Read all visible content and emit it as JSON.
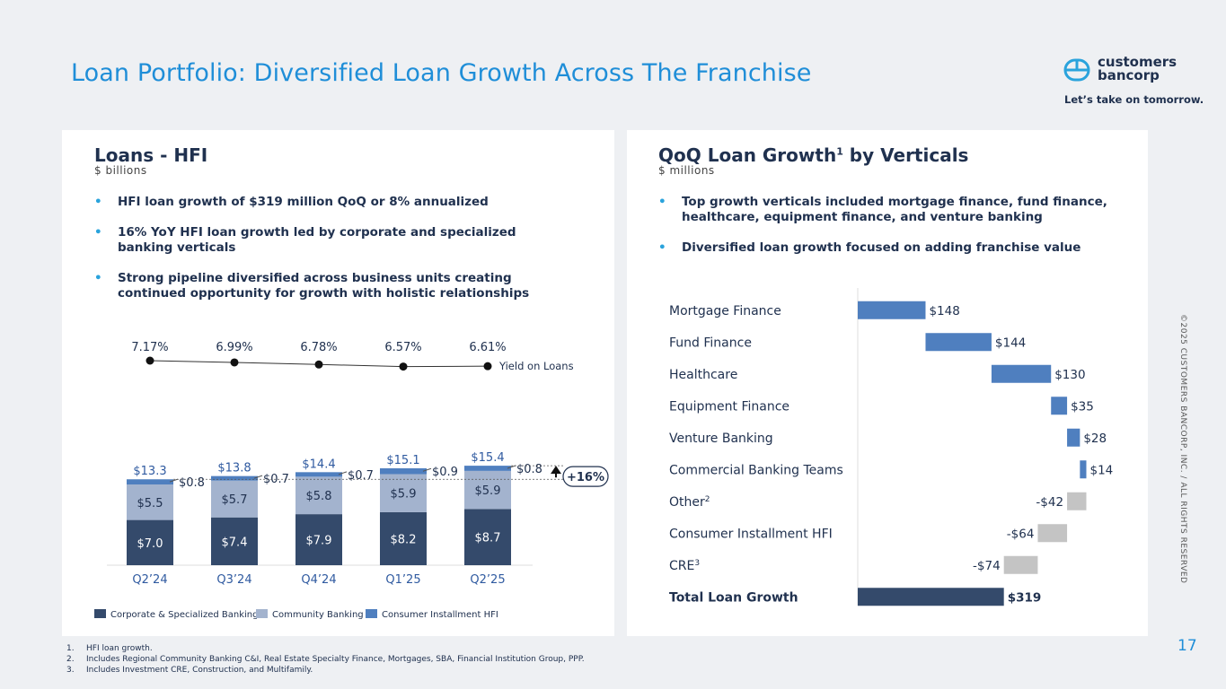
{
  "title": "Loan Portfolio: Diversified Loan Growth Across The Franchise",
  "logo": {
    "line1": "customers",
    "line2": "bancorp",
    "tagline": "Let’s take on tomorrow."
  },
  "left": {
    "title": "Loans - HFI",
    "subtitle": "$ billions",
    "bullets": [
      "HFI loan growth of $319 million QoQ or 8% annualized",
      "16% YoY HFI loan growth led by corporate and specialized banking verticals",
      "Strong pipeline diversified across business units creating continued opportunity for growth with holistic relationships"
    ]
  },
  "right": {
    "title": "QoQ Loan Growth",
    "title_sup": "1",
    "title_suffix": " by Verticals",
    "subtitle": "$ millions",
    "bullets": [
      "Top growth verticals included mortgage finance, fund finance, healthcare, equipment finance, and venture banking",
      "Diversified loan growth focused on adding franchise value"
    ]
  },
  "chart_data": [
    {
      "type": "bar",
      "stacked": true,
      "categories": [
        "Q2’24",
        "Q3’24",
        "Q4’24",
        "Q1’25",
        "Q2’25"
      ],
      "series": [
        {
          "name": "Corporate & Specialized Banking",
          "values": [
            7.0,
            7.4,
            7.9,
            8.2,
            8.7
          ],
          "labels": [
            "$7.0",
            "$7.4",
            "$7.9",
            "$8.2",
            "$8.7"
          ],
          "color": "#344a6b"
        },
        {
          "name": "Community Banking",
          "values": [
            5.5,
            5.7,
            5.8,
            5.9,
            5.9
          ],
          "labels": [
            "$5.5",
            "$5.7",
            "$5.8",
            "$5.9",
            "$5.9"
          ],
          "color": "#a3b3ce"
        },
        {
          "name": "Consumer Installment HFI",
          "values": [
            0.8,
            0.7,
            0.7,
            0.9,
            0.8
          ],
          "labels": [
            "$0.8",
            "$0.7",
            "$0.7",
            "$0.9",
            "$0.8"
          ],
          "color": "#4f7fbf"
        }
      ],
      "totals": [
        "$13.3",
        "$13.8",
        "$14.4",
        "$15.1",
        "$15.4"
      ],
      "yield_line": {
        "name": "Yield on Loans",
        "values": [
          7.17,
          6.99,
          6.78,
          6.57,
          6.61
        ],
        "labels": [
          "7.17%",
          "6.99%",
          "6.78%",
          "6.57%",
          "6.61%"
        ]
      },
      "annotation": "+16%",
      "legend_position": "bottom"
    },
    {
      "type": "bar",
      "orientation": "horizontal",
      "waterfall": true,
      "categories": [
        "Mortgage Finance",
        "Fund Finance",
        "Healthcare",
        "Equipment Finance",
        "Venture Banking",
        "Commercial Banking Teams",
        "Other",
        "Consumer Installment HFI",
        "CRE",
        "Total Loan Growth"
      ],
      "category_sups": [
        "",
        "",
        "",
        "",
        "",
        "",
        "2",
        "",
        "3",
        ""
      ],
      "values": [
        148,
        144,
        130,
        35,
        28,
        14,
        -42,
        -64,
        -74,
        319
      ],
      "labels": [
        "$148",
        "$144",
        "$130",
        "$35",
        "$28",
        "$14",
        "-$42",
        "-$64",
        "-$74",
        "$319"
      ],
      "colors": {
        "positive": "#4f7fbf",
        "negative": "#c4c4c4",
        "total": "#344a6b"
      }
    }
  ],
  "footnotes": [
    {
      "n": "1.",
      "text": "HFI loan growth."
    },
    {
      "n": "2.",
      "text": "Includes Regional Community Banking C&I, Real Estate Specialty Finance, Mortgages, SBA, Financial Institution Group, PPP."
    },
    {
      "n": "3.",
      "text": "Includes Investment CRE, Construction, and Multifamily."
    }
  ],
  "copyright": "©2025 CUSTOMERS BANCORP, INC. / ALL RIGHTS RESERVED",
  "page_number": "17"
}
